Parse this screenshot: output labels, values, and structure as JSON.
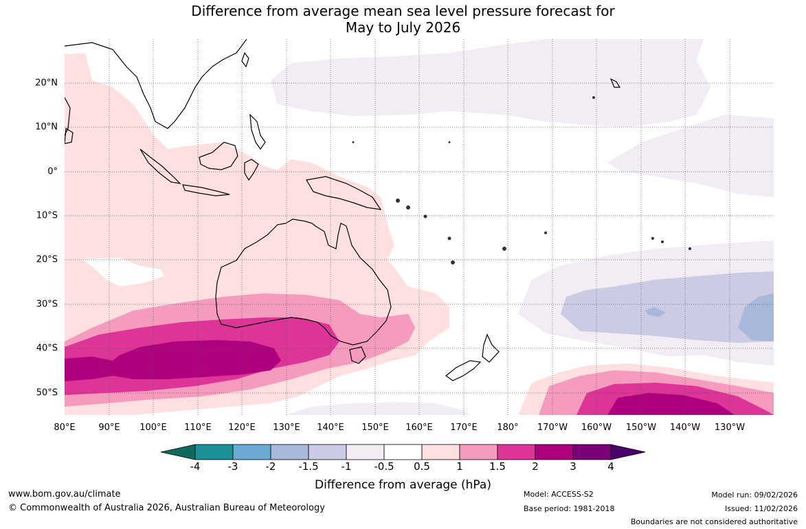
{
  "title": {
    "line1": "Difference from average mean sea level pressure forecast for",
    "line2": "May to July 2026"
  },
  "lat_labels": [
    "20°N",
    "10°N",
    "0°",
    "10°S",
    "20°S",
    "30°S",
    "40°S",
    "50°S"
  ],
  "lon_labels": [
    "80°E",
    "90°E",
    "100°E",
    "110°E",
    "120°E",
    "130°E",
    "140°E",
    "150°E",
    "160°E",
    "170°E",
    "180°",
    "170°W",
    "160°W",
    "150°W",
    "140°W",
    "130°W"
  ],
  "colorbar": {
    "title": "Difference from average (hPa)",
    "ticks": [
      "-4",
      "-3",
      "-2",
      "-1.5",
      "-1",
      "-0.5",
      "0.5",
      "1",
      "1.5",
      "2",
      "3",
      "4"
    ],
    "colors": [
      "#0d6a5c",
      "#1a9196",
      "#6aaad2",
      "#a7b8da",
      "#cbcbe3",
      "#f2ecf4",
      "#ffffff",
      "#fde0df",
      "#f59bbd",
      "#dc3597",
      "#ae017e",
      "#7a0177",
      "#49006a"
    ]
  },
  "footer": {
    "website": "www.bom.gov.au/climate",
    "copyright": "© Commonwealth of Australia 2026, Australian Bureau of Meteorology",
    "model": "Model: ACCESS-S2",
    "base_period": "Base period: 1981-2018",
    "model_run": "Model run: 09/02/2026",
    "issued": "Issued: 11/02/2026",
    "disclaimer": "Boundaries are not considered authoritative"
  }
}
